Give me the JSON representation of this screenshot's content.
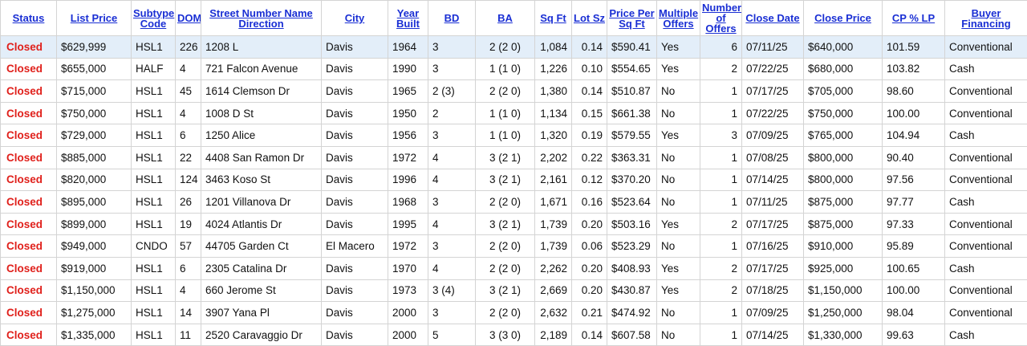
{
  "columns": [
    "Status",
    "List Price",
    "Subtype Code",
    "DOM",
    "Street Number Name Direction",
    "City",
    "Year Built",
    "BD",
    "BA",
    "Sq Ft",
    "Lot Sz",
    "Price Per Sq Ft",
    "Multiple Offers",
    "Number of Offers",
    "Close Date",
    "Close Price",
    "CP % LP",
    "Buyer Financing"
  ],
  "rows": [
    [
      "Closed",
      "$629,999",
      "HSL1",
      "226",
      "1208 L",
      "Davis",
      "1964",
      "3",
      "2 (2 0)",
      "1,084",
      "0.14",
      "$590.41",
      "Yes",
      "6",
      "07/11/25",
      "$640,000",
      "101.59",
      "Conventional"
    ],
    [
      "Closed",
      "$655,000",
      "HALF",
      "4",
      "721 Falcon Avenue",
      "Davis",
      "1990",
      "3",
      "1 (1 0)",
      "1,226",
      "0.10",
      "$554.65",
      "Yes",
      "2",
      "07/22/25",
      "$680,000",
      "103.82",
      "Cash"
    ],
    [
      "Closed",
      "$715,000",
      "HSL1",
      "45",
      "1614 Clemson Dr",
      "Davis",
      "1965",
      "2 (3)",
      "2 (2 0)",
      "1,380",
      "0.14",
      "$510.87",
      "No",
      "1",
      "07/17/25",
      "$705,000",
      "98.60",
      "Conventional"
    ],
    [
      "Closed",
      "$750,000",
      "HSL1",
      "4",
      "1008 D St",
      "Davis",
      "1950",
      "2",
      "1 (1 0)",
      "1,134",
      "0.15",
      "$661.38",
      "No",
      "1",
      "07/22/25",
      "$750,000",
      "100.00",
      "Conventional"
    ],
    [
      "Closed",
      "$729,000",
      "HSL1",
      "6",
      "1250 Alice",
      "Davis",
      "1956",
      "3",
      "1 (1 0)",
      "1,320",
      "0.19",
      "$579.55",
      "Yes",
      "3",
      "07/09/25",
      "$765,000",
      "104.94",
      "Cash"
    ],
    [
      "Closed",
      "$885,000",
      "HSL1",
      "22",
      "4408 San Ramon Dr",
      "Davis",
      "1972",
      "4",
      "3 (2 1)",
      "2,202",
      "0.22",
      "$363.31",
      "No",
      "1",
      "07/08/25",
      "$800,000",
      "90.40",
      "Conventional"
    ],
    [
      "Closed",
      "$820,000",
      "HSL1",
      "124",
      "3463 Koso St",
      "Davis",
      "1996",
      "4",
      "3 (2 1)",
      "2,161",
      "0.12",
      "$370.20",
      "No",
      "1",
      "07/14/25",
      "$800,000",
      "97.56",
      "Conventional"
    ],
    [
      "Closed",
      "$895,000",
      "HSL1",
      "26",
      "1201 Villanova Dr",
      "Davis",
      "1968",
      "3",
      "2 (2 0)",
      "1,671",
      "0.16",
      "$523.64",
      "No",
      "1",
      "07/11/25",
      "$875,000",
      "97.77",
      "Cash"
    ],
    [
      "Closed",
      "$899,000",
      "HSL1",
      "19",
      "4024 Atlantis Dr",
      "Davis",
      "1995",
      "4",
      "3 (2 1)",
      "1,739",
      "0.20",
      "$503.16",
      "Yes",
      "2",
      "07/17/25",
      "$875,000",
      "97.33",
      "Conventional"
    ],
    [
      "Closed",
      "$949,000",
      "CNDO",
      "57",
      "44705 Garden Ct",
      "El Macero",
      "1972",
      "3",
      "2 (2 0)",
      "1,739",
      "0.06",
      "$523.29",
      "No",
      "1",
      "07/16/25",
      "$910,000",
      "95.89",
      "Conventional"
    ],
    [
      "Closed",
      "$919,000",
      "HSL1",
      "6",
      "2305 Catalina Dr",
      "Davis",
      "1970",
      "4",
      "2 (2 0)",
      "2,262",
      "0.20",
      "$408.93",
      "Yes",
      "2",
      "07/17/25",
      "$925,000",
      "100.65",
      "Cash"
    ],
    [
      "Closed",
      "$1,150,000",
      "HSL1",
      "4",
      "660 Jerome St",
      "Davis",
      "1973",
      "3 (4)",
      "3 (2 1)",
      "2,669",
      "0.20",
      "$430.87",
      "Yes",
      "2",
      "07/18/25",
      "$1,150,000",
      "100.00",
      "Conventional"
    ],
    [
      "Closed",
      "$1,275,000",
      "HSL1",
      "14",
      "3907 Yana Pl",
      "Davis",
      "2000",
      "3",
      "2 (2 0)",
      "2,632",
      "0.21",
      "$474.92",
      "No",
      "1",
      "07/09/25",
      "$1,250,000",
      "98.04",
      "Conventional"
    ],
    [
      "Closed",
      "$1,335,000",
      "HSL1",
      "11",
      "2520 Caravaggio Dr",
      "Davis",
      "2000",
      "5",
      "3 (3 0)",
      "2,189",
      "0.14",
      "$607.58",
      "No",
      "1",
      "07/14/25",
      "$1,330,000",
      "99.63",
      "Cash"
    ]
  ],
  "highlighted_row": 0,
  "colors": {
    "header_link": "#1a2fd4",
    "status_closed": "#e0201b",
    "row_highlight": "#e3eef9",
    "grid": "#d4d4d4"
  }
}
